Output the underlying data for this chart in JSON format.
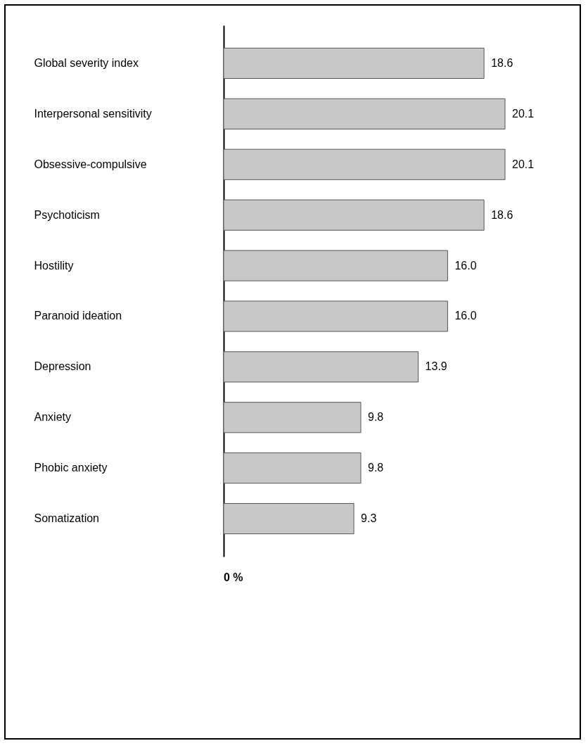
{
  "chart_data": {
    "type": "bar",
    "orientation": "horizontal",
    "categories": [
      "Global severity index",
      "Interpersonal sensitivity",
      "Obsessive-compulsive",
      "Psychoticism",
      "Hostility",
      "Paranoid ideation",
      "Depression",
      "Anxiety",
      "Phobic anxiety",
      "Somatization"
    ],
    "values": [
      18.6,
      20.1,
      20.1,
      18.6,
      16.0,
      16.0,
      13.9,
      9.8,
      9.8,
      9.3
    ],
    "value_labels": [
      "18.6",
      "20.1",
      "20.1",
      "18.6",
      "16.0",
      "16.0",
      "13.9",
      "9.8",
      "9.8",
      "9.3"
    ],
    "color": "#c8c8c8",
    "annotations": [
      "0 %"
    ]
  }
}
